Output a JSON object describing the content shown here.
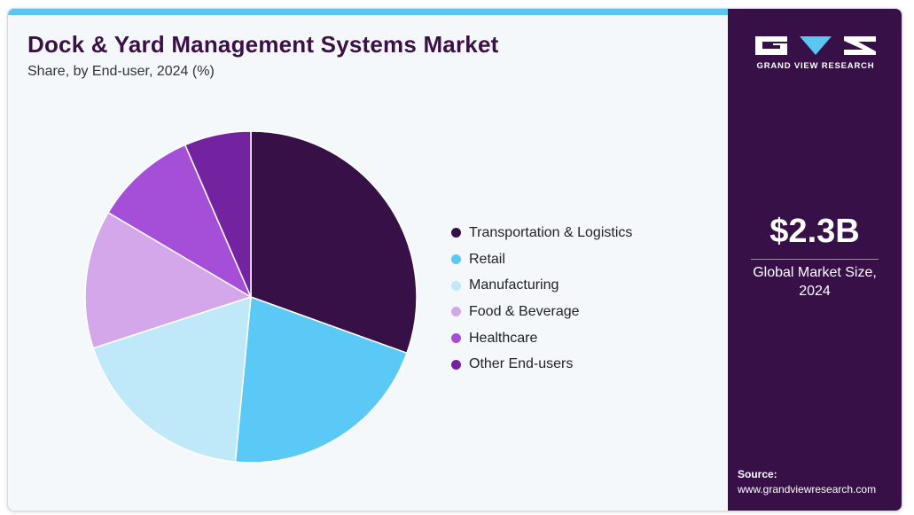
{
  "header": {
    "title": "Dock & Yard Management Systems Market",
    "subtitle": "Share, by End-user, 2024 (%)"
  },
  "chart_data": {
    "type": "pie",
    "categories": [
      "Transportation & Logistics",
      "Retail",
      "Manufacturing",
      "Food & Beverage",
      "Healthcare",
      "Other End-users"
    ],
    "values": [
      30.5,
      21.0,
      18.5,
      13.5,
      10.0,
      6.5
    ],
    "colors": [
      "#371047",
      "#5bc9f5",
      "#bfe8f8",
      "#d4a7ea",
      "#a54fd8",
      "#7423a0"
    ],
    "legend_position": "right"
  },
  "sidebar": {
    "logo_text": "GRAND VIEW RESEARCH",
    "market_size": "$2.3B",
    "market_label": "Global Market Size, 2024",
    "source_label": "Source:",
    "source_url": "www.grandviewresearch.com"
  }
}
